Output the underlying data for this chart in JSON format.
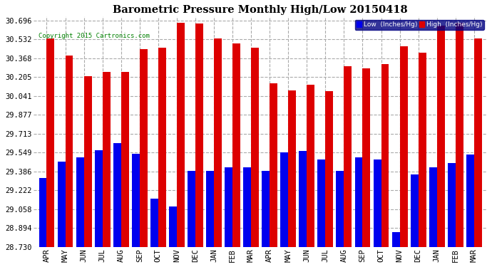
{
  "title": "Barometric Pressure Monthly High/Low 20150418",
  "copyright": "Copyright 2015 Cartronics.com",
  "legend_low": "Low  (Inches/Hg)",
  "legend_high": "High  (Inches/Hg)",
  "color_low": "#0000ee",
  "color_high": "#dd0000",
  "background_color": "#ffffff",
  "grid_color": "#aaaaaa",
  "ylim_min": 28.73,
  "ylim_max": 30.73,
  "yticks": [
    28.73,
    28.894,
    29.058,
    29.222,
    29.386,
    29.549,
    29.713,
    29.877,
    30.041,
    30.205,
    30.368,
    30.532,
    30.696
  ],
  "categories": [
    "APR",
    "MAY",
    "JUN",
    "JUL",
    "AUG",
    "SEP",
    "OCT",
    "NOV",
    "DEC",
    "JAN",
    "FEB",
    "MAR",
    "APR",
    "MAY",
    "JUN",
    "JUL",
    "AUG",
    "SEP",
    "OCT",
    "NOV",
    "DEC",
    "JAN",
    "FEB",
    "MAR"
  ],
  "highs": [
    30.54,
    30.39,
    30.21,
    30.25,
    30.25,
    30.45,
    30.46,
    30.68,
    30.67,
    30.54,
    30.5,
    30.46,
    30.15,
    30.09,
    30.14,
    30.08,
    30.3,
    30.28,
    30.32,
    30.47,
    30.42,
    30.65,
    30.68,
    30.54
  ],
  "lows": [
    29.33,
    29.47,
    29.51,
    29.57,
    29.63,
    29.54,
    29.15,
    29.08,
    29.39,
    29.39,
    29.42,
    29.42,
    29.39,
    29.55,
    29.56,
    29.49,
    29.39,
    29.51,
    29.49,
    28.86,
    29.36,
    29.42,
    29.46,
    29.53
  ]
}
